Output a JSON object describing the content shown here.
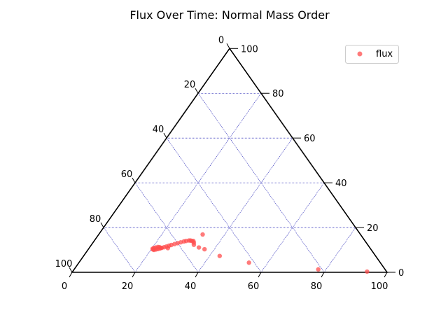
{
  "chart_data": {
    "type": "scatter",
    "subtype": "ternary",
    "title": "Flux Over Time: Normal Mass Order",
    "scale": 100,
    "gridlines_every": 20,
    "grid": true,
    "legend_placement": "top-right",
    "ticks": {
      "bottom": [
        "0",
        "20",
        "40",
        "60",
        "80",
        "100"
      ],
      "right": [
        "0",
        "20",
        "40",
        "60",
        "80",
        "100"
      ],
      "left": [
        "0",
        "20",
        "40",
        "60",
        "80",
        "100"
      ]
    },
    "series": [
      {
        "name": "flux",
        "color": "#ff4d4d",
        "points": [
          [
            93.5,
            0.3
          ],
          [
            77.5,
            1.3
          ],
          [
            54.0,
            4.3
          ],
          [
            43.2,
            7.3
          ],
          [
            36.9,
            10.3
          ],
          [
            34.7,
            11.1
          ],
          [
            32.5,
            12.3
          ],
          [
            32.0,
            13.3
          ],
          [
            31.5,
            14.0
          ],
          [
            31.0,
            14.0
          ],
          [
            30.5,
            14.2
          ],
          [
            30.0,
            14.2
          ],
          [
            29.2,
            14.0
          ],
          [
            28.6,
            13.8
          ],
          [
            27.8,
            13.4
          ],
          [
            27.0,
            13.0
          ],
          [
            26.2,
            12.6
          ],
          [
            25.4,
            12.2
          ],
          [
            24.8,
            11.9
          ],
          [
            24.2,
            11.5
          ],
          [
            23.6,
            11.2
          ],
          [
            23.0,
            10.9
          ],
          [
            22.5,
            10.6
          ],
          [
            22.0,
            10.4
          ],
          [
            21.5,
            10.2
          ],
          [
            21.0,
            10.0
          ],
          [
            20.6,
            10.2
          ],
          [
            20.3,
            10.5
          ],
          [
            20.5,
            10.9
          ],
          [
            21.0,
            11.1
          ],
          [
            21.6,
            11.3
          ],
          [
            22.2,
            11.2
          ],
          [
            22.8,
            10.9
          ],
          [
            33.0,
            16.9
          ],
          [
            25.0,
            10.8
          ]
        ]
      }
    ]
  }
}
